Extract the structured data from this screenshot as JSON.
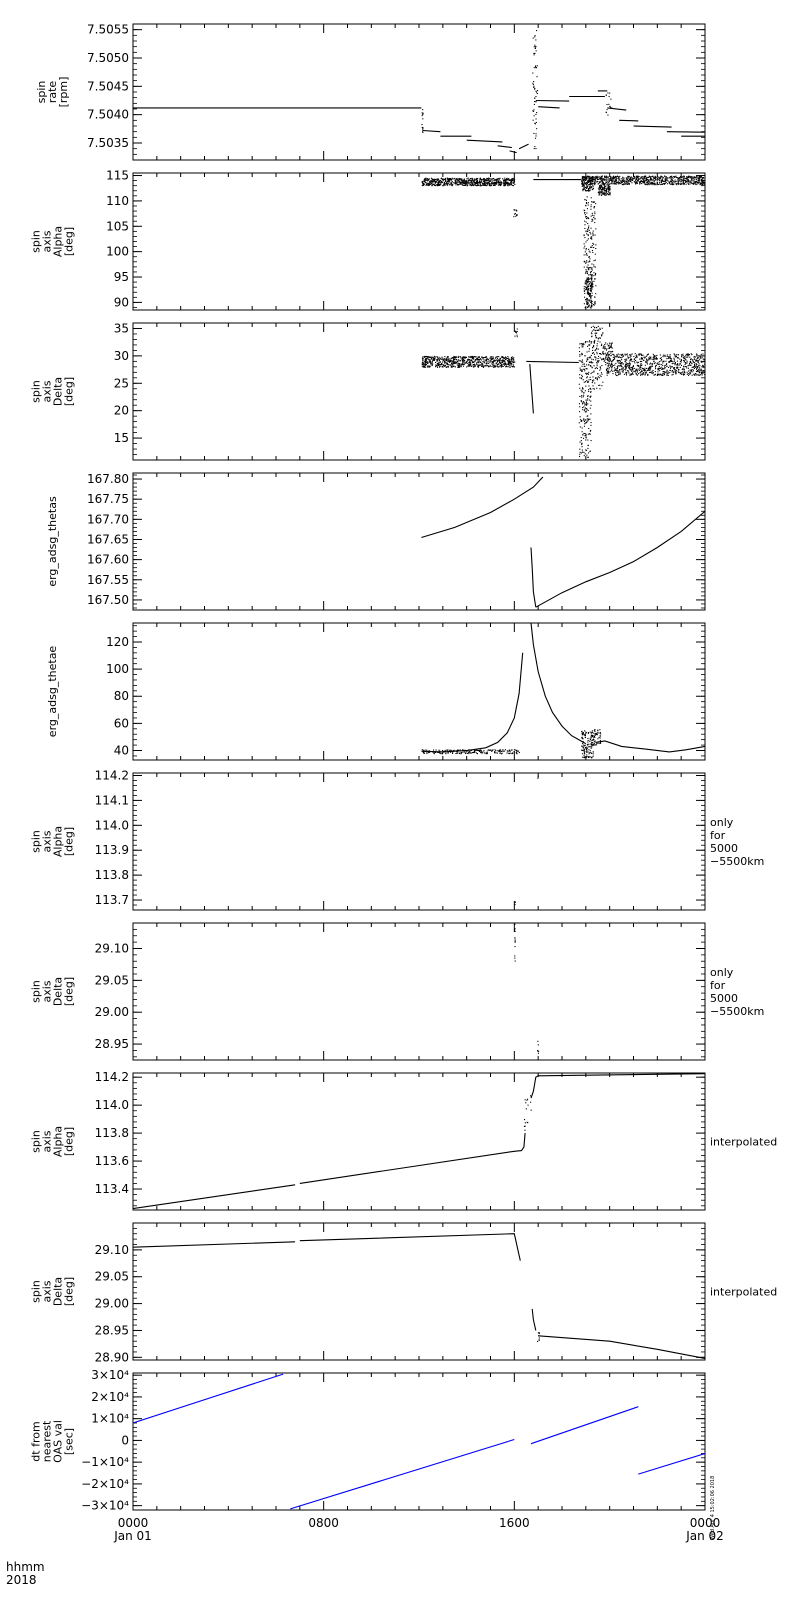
{
  "x_axis": {
    "label_rows": [
      "hhmm",
      "2018"
    ],
    "ticks": [
      {
        "hour": 0,
        "row1": "0000",
        "row2": "Jan 01"
      },
      {
        "hour": 8,
        "row1": "0800",
        "row2": ""
      },
      {
        "hour": 16,
        "row1": "1600",
        "row2": ""
      },
      {
        "hour": 24,
        "row1": "0000",
        "row2": "Jan 02"
      }
    ],
    "range_hours": [
      0,
      24
    ]
  },
  "timestamp": "Wed Apr  4 15:02:06 2018",
  "chart_data": [
    {
      "type": "scatter",
      "ylabel_lines": [
        "spin",
        "rate",
        "[rpm]"
      ],
      "right_note": [],
      "ylim": [
        7.5032,
        7.5056
      ],
      "yticks": [
        7.5035,
        7.504,
        7.5045,
        7.505,
        7.5055
      ],
      "tick_labels": [
        "7.5035",
        "7.5040",
        "7.5045",
        "7.5050",
        "7.5055"
      ],
      "color": "#000000",
      "segments": [
        [
          [
            0,
            7.50412
          ],
          [
            12.1,
            7.50412
          ]
        ],
        [
          [
            12.15,
            7.50372
          ],
          [
            12.9,
            7.5037
          ]
        ],
        [
          [
            12.9,
            7.50362
          ],
          [
            14.2,
            7.50362
          ]
        ],
        [
          [
            14.0,
            7.50355
          ],
          [
            15.5,
            7.50352
          ]
        ],
        [
          [
            15.3,
            7.50345
          ],
          [
            15.9,
            7.50342
          ]
        ],
        [
          [
            15.8,
            7.50336
          ],
          [
            16.1,
            7.50333
          ]
        ],
        [
          [
            16.2,
            7.5034
          ],
          [
            16.6,
            7.50348
          ]
        ],
        [
          [
            16.9,
            7.50425
          ],
          [
            18.3,
            7.50424
          ]
        ],
        [
          [
            17.0,
            7.50414
          ],
          [
            17.9,
            7.50412
          ]
        ],
        [
          [
            18.3,
            7.50432
          ],
          [
            19.8,
            7.50432
          ]
        ],
        [
          [
            19.5,
            7.50442
          ],
          [
            19.9,
            7.50442
          ]
        ],
        [
          [
            19.9,
            7.50412
          ],
          [
            20.7,
            7.50408
          ]
        ],
        [
          [
            20.4,
            7.5039
          ],
          [
            21.2,
            7.50389
          ]
        ],
        [
          [
            21.0,
            7.5038
          ],
          [
            22.6,
            7.50378
          ]
        ],
        [
          [
            22.4,
            7.5037
          ],
          [
            24,
            7.50369
          ]
        ],
        [
          [
            23.0,
            7.50362
          ],
          [
            24,
            7.50362
          ]
        ]
      ],
      "scatter_groups": [
        {
          "x": [
            12.1,
            12.15
          ],
          "ylim": [
            7.5036,
            7.5041
          ],
          "n": 14
        },
        {
          "x": [
            16.75,
            16.95
          ],
          "ylim": [
            7.5034,
            7.5055
          ],
          "n": 60
        },
        {
          "x": [
            19.8,
            20.1
          ],
          "ylim": [
            7.504,
            7.5044
          ],
          "n": 16
        }
      ]
    },
    {
      "type": "scatter",
      "ylabel_lines": [
        "spin",
        "axis",
        "Alpha",
        "[deg]"
      ],
      "right_note": [],
      "ylim": [
        88.5,
        115.5
      ],
      "yticks": [
        90,
        95,
        100,
        105,
        110,
        115
      ],
      "tick_labels": [
        "90",
        "95",
        "100",
        "105",
        "110",
        "115"
      ],
      "color": "#000000",
      "segments": [
        [
          [
            16.8,
            114.2
          ],
          [
            18.8,
            114.2
          ]
        ]
      ],
      "scatter_groups": [
        {
          "x": [
            12.1,
            16.0
          ],
          "ylim": [
            113.1,
            114.6
          ],
          "n": 700
        },
        {
          "x": [
            18.8,
            24.0
          ],
          "ylim": [
            113.3,
            115.0
          ],
          "n": 800
        },
        {
          "x": [
            18.8,
            19.3
          ],
          "ylim": [
            112.0,
            115.0
          ],
          "n": 120
        },
        {
          "x": [
            19.5,
            20.0
          ],
          "ylim": [
            111.2,
            113.3
          ],
          "n": 120
        },
        {
          "x": [
            18.9,
            19.4
          ],
          "ylim": [
            89.0,
            111.0
          ],
          "n": 220
        },
        {
          "x": [
            19.0,
            19.25
          ],
          "ylim": [
            89.0,
            97.0
          ],
          "n": 120
        },
        {
          "x": [
            15.95,
            16.1
          ],
          "ylim": [
            107.0,
            108.5
          ],
          "n": 14
        }
      ]
    },
    {
      "type": "scatter",
      "ylabel_lines": [
        "spin",
        "axis",
        "Delta",
        "[deg]"
      ],
      "right_note": [],
      "ylim": [
        11.0,
        36.0
      ],
      "yticks": [
        15,
        20,
        25,
        30,
        35
      ],
      "tick_labels": [
        "15",
        "20",
        "25",
        "30",
        "35"
      ],
      "color": "#000000",
      "segments": [
        [
          [
            16.5,
            29.0
          ],
          [
            18.7,
            28.8
          ]
        ],
        [
          [
            16.65,
            28.5
          ],
          [
            16.8,
            19.5
          ]
        ]
      ],
      "scatter_groups": [
        {
          "x": [
            12.1,
            16.0
          ],
          "ylim": [
            28.0,
            30.0
          ],
          "n": 700
        },
        {
          "x": [
            19.8,
            24.0
          ],
          "ylim": [
            26.5,
            30.5
          ],
          "n": 800
        },
        {
          "x": [
            18.7,
            19.2
          ],
          "ylim": [
            11.5,
            33.0
          ],
          "n": 240
        },
        {
          "x": [
            19.2,
            19.7
          ],
          "ylim": [
            24.0,
            35.5
          ],
          "n": 140
        },
        {
          "x": [
            19.7,
            20.1
          ],
          "ylim": [
            29.0,
            32.5
          ],
          "n": 60
        },
        {
          "x": [
            16.0,
            16.1
          ],
          "ylim": [
            33.5,
            35.0
          ],
          "n": 10
        }
      ]
    },
    {
      "type": "line",
      "ylabel_lines": [
        "erg_adsg_thetas"
      ],
      "right_note": [],
      "ylim": [
        167.475,
        167.815
      ],
      "yticks": [
        167.5,
        167.55,
        167.6,
        167.65,
        167.7,
        167.75,
        167.8
      ],
      "tick_labels": [
        "167.50",
        "167.55",
        "167.60",
        "167.65",
        "167.70",
        "167.75",
        "167.80"
      ],
      "color": "#000000",
      "segments": [
        [
          [
            12.1,
            167.655
          ],
          [
            13.5,
            167.68
          ],
          [
            15.0,
            167.717
          ],
          [
            16.0,
            167.75
          ],
          [
            16.8,
            167.78
          ],
          [
            17.2,
            167.805
          ]
        ],
        [
          [
            16.7,
            167.63
          ],
          [
            16.75,
            167.58
          ],
          [
            16.8,
            167.52
          ],
          [
            16.9,
            167.482
          ]
        ],
        [
          [
            16.9,
            167.482
          ],
          [
            18.0,
            167.518
          ],
          [
            19.0,
            167.545
          ],
          [
            20.0,
            167.568
          ],
          [
            21.0,
            167.595
          ],
          [
            22.0,
            167.63
          ],
          [
            23.0,
            167.67
          ],
          [
            24.0,
            167.72
          ]
        ]
      ],
      "scatter_groups": []
    },
    {
      "type": "line",
      "ylabel_lines": [
        "erg_adsg_thetae"
      ],
      "right_note": [],
      "ylim": [
        33,
        134
      ],
      "yticks": [
        40,
        60,
        80,
        100,
        120
      ],
      "tick_labels": [
        "40",
        "60",
        "80",
        "100",
        "120"
      ],
      "color": "#000000",
      "segments": [
        [
          [
            12.1,
            39.5
          ],
          [
            13.0,
            39.0
          ],
          [
            14.0,
            40.0
          ],
          [
            14.8,
            42.0
          ],
          [
            15.3,
            46.0
          ],
          [
            15.7,
            53.0
          ],
          [
            16.0,
            64.0
          ],
          [
            16.2,
            82.0
          ],
          [
            16.35,
            112.0
          ]
        ],
        [
          [
            16.7,
            134.0
          ],
          [
            16.8,
            118.0
          ],
          [
            17.0,
            98.0
          ],
          [
            17.3,
            80.0
          ],
          [
            17.6,
            68.0
          ],
          [
            18.0,
            58.0
          ],
          [
            18.4,
            51.0
          ],
          [
            18.8,
            47.0
          ],
          [
            19.0,
            45.0
          ]
        ],
        [
          [
            19.4,
            46.0
          ],
          [
            19.8,
            47.0
          ],
          [
            20.5,
            43.0
          ],
          [
            21.5,
            41.0
          ],
          [
            22.5,
            39.0
          ],
          [
            23.2,
            40.5
          ],
          [
            24.0,
            43.0
          ]
        ]
      ],
      "scatter_groups": [
        {
          "x": [
            18.8,
            19.3
          ],
          "ylim": [
            35.0,
            55.0
          ],
          "n": 120
        },
        {
          "x": [
            19.2,
            19.6
          ],
          "ylim": [
            44.0,
            56.0
          ],
          "n": 60
        },
        {
          "x": [
            12.1,
            16.2
          ],
          "ylim": [
            38.0,
            41.0
          ],
          "n": 200
        }
      ]
    },
    {
      "type": "scatter",
      "ylabel_lines": [
        "spin",
        "axis",
        "Alpha",
        "[deg]"
      ],
      "right_note": [
        "only",
        "for",
        "5000",
        "−5500km"
      ],
      "ylim": [
        113.66,
        114.21
      ],
      "yticks": [
        113.7,
        113.8,
        113.9,
        114.0,
        114.1,
        114.2
      ],
      "tick_labels": [
        "113.7",
        "113.8",
        "113.9",
        "114.0",
        "114.1",
        "114.2"
      ],
      "color": "#000000",
      "segments": [],
      "scatter_groups": [
        {
          "x": [
            16.0,
            16.02
          ],
          "ylim": [
            113.68,
            113.7
          ],
          "n": 3
        },
        {
          "x": [
            16.95,
            17.0
          ],
          "ylim": [
            114.19,
            114.2
          ],
          "n": 3
        }
      ]
    },
    {
      "type": "scatter",
      "ylabel_lines": [
        "spin",
        "axis",
        "Delta",
        "[deg]"
      ],
      "right_note": [
        "only",
        "for",
        "5000",
        "−5500km"
      ],
      "ylim": [
        28.925,
        29.14
      ],
      "yticks": [
        28.95,
        29.0,
        29.05,
        29.1
      ],
      "tick_labels": [
        "28.95",
        "29.00",
        "29.05",
        "29.10"
      ],
      "color": "#000000",
      "segments": [],
      "scatter_groups": [
        {
          "x": [
            15.98,
            16.02
          ],
          "ylim": [
            29.08,
            29.14
          ],
          "n": 14
        },
        {
          "x": [
            16.95,
            17.0
          ],
          "ylim": [
            28.935,
            28.96
          ],
          "n": 6
        }
      ]
    },
    {
      "type": "line",
      "ylabel_lines": [
        "spin",
        "axis",
        "Alpha",
        "[deg]"
      ],
      "right_note": [
        "interpolated"
      ],
      "ylim": [
        113.25,
        114.23
      ],
      "yticks": [
        113.4,
        113.6,
        113.8,
        114.0,
        114.2
      ],
      "tick_labels": [
        "113.4",
        "113.6",
        "113.8",
        "114.0",
        "114.2"
      ],
      "color": "#000000",
      "segments": [
        [
          [
            0,
            113.26
          ],
          [
            6.8,
            113.43
          ]
        ],
        [
          [
            7.0,
            113.44
          ],
          [
            16.0,
            113.67
          ],
          [
            16.3,
            113.675
          ],
          [
            16.4,
            113.7
          ],
          [
            16.45,
            113.8
          ]
        ],
        [
          [
            16.7,
            114.05
          ],
          [
            16.8,
            114.1
          ],
          [
            16.9,
            114.2
          ],
          [
            17.0,
            114.21
          ],
          [
            24.0,
            114.225
          ]
        ]
      ],
      "scatter_groups": [
        {
          "x": [
            16.4,
            16.7
          ],
          "ylim": [
            113.8,
            114.08
          ],
          "n": 16
        }
      ]
    },
    {
      "type": "line",
      "ylabel_lines": [
        "spin",
        "axis",
        "Delta",
        "[deg]"
      ],
      "right_note": [
        "interpolated"
      ],
      "ylim": [
        28.895,
        29.15
      ],
      "yticks": [
        28.9,
        28.95,
        29.0,
        29.05,
        29.1
      ],
      "tick_labels": [
        "28.90",
        "28.95",
        "29.00",
        "29.05",
        "29.10"
      ],
      "color": "#000000",
      "segments": [
        [
          [
            0,
            29.105
          ],
          [
            6.8,
            29.115
          ]
        ],
        [
          [
            7.0,
            29.117
          ],
          [
            16.0,
            29.13
          ],
          [
            16.1,
            29.11
          ],
          [
            16.25,
            29.08
          ]
        ],
        [
          [
            16.75,
            28.99
          ],
          [
            16.8,
            28.97
          ],
          [
            16.9,
            28.95
          ]
        ],
        [
          [
            17.0,
            28.94
          ],
          [
            20.0,
            28.93
          ],
          [
            22.0,
            28.915
          ],
          [
            24.0,
            28.898
          ]
        ]
      ],
      "scatter_groups": [
        {
          "x": [
            16.95,
            17.05
          ],
          "ylim": [
            28.93,
            28.95
          ],
          "n": 8
        }
      ]
    },
    {
      "type": "line",
      "ylabel_lines": [
        "dt from",
        "nearest",
        "OAS val",
        "[sec]"
      ],
      "right_note": [],
      "ylim": [
        -32000,
        31000
      ],
      "yticks": [
        -30000,
        -20000,
        -10000,
        0,
        10000,
        20000,
        30000
      ],
      "tick_labels": [
        "−3×10⁴",
        "−2×10⁴",
        "−1×10⁴",
        "0",
        "1×10⁴",
        "2×10⁴",
        "3×10⁴"
      ],
      "color": "#0000ff",
      "segments": [
        [
          [
            0,
            8000
          ],
          [
            6.3,
            30500
          ]
        ],
        [
          [
            6.6,
            -31500
          ],
          [
            16.0,
            400
          ]
        ],
        [
          [
            16.7,
            -1500
          ],
          [
            21.2,
            15500
          ]
        ],
        [
          [
            21.2,
            -15500
          ],
          [
            24.0,
            -6000
          ]
        ]
      ],
      "scatter_groups": []
    }
  ]
}
